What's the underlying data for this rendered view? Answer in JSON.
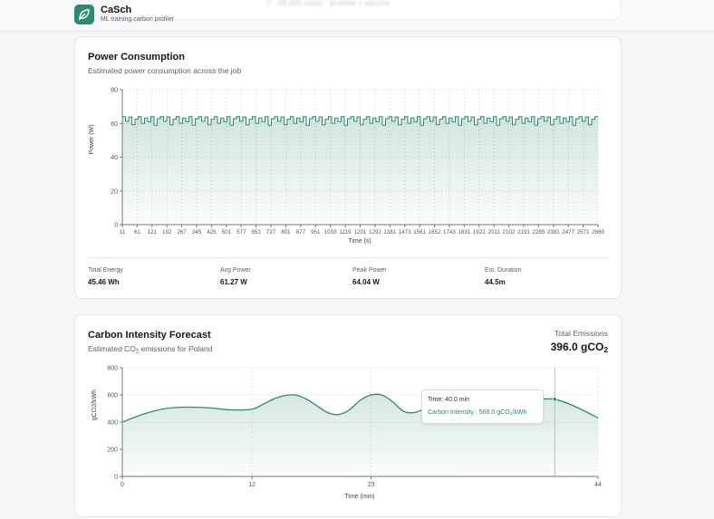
{
  "header": {
    "brand_name": "CaSch",
    "brand_sub": "ML training carbon profiler",
    "blurred_text": "2 · 39,000 steps · profiled 1 epoche"
  },
  "power_card": {
    "title": "Power Consumption",
    "subtitle": "Estimated power consumption across the job",
    "stats": [
      {
        "label": "Total Energy",
        "value": "45.46 Wh"
      },
      {
        "label": "Avg Power",
        "value": "61.27 W"
      },
      {
        "label": "Peak Power",
        "value": "64.04 W"
      },
      {
        "label": "Est. Duration",
        "value": "44.5m"
      }
    ]
  },
  "carbon_card": {
    "title": "Carbon Intensity Forecast",
    "subtitle_prefix": "Estimated CO",
    "subtitle_sub": "2",
    "subtitle_suffix": " emissions for Poland",
    "total_label": "Total Emissions",
    "total_value_prefix": "396.0 gCO",
    "total_value_sub": "2",
    "tooltip": {
      "time": "Time: 40.0 min",
      "ci_prefix": "Carbon Intensity : 568.0 gCO",
      "ci_sub": "2",
      "ci_suffix": "/kWh"
    }
  },
  "chart_data": [
    {
      "type": "area",
      "title": "Power Consumption",
      "xlabel": "Time (s)",
      "ylabel": "Power (W)",
      "ylim": [
        0,
        80
      ],
      "yticks": [
        0,
        20,
        40,
        60,
        80
      ],
      "xticks": [
        "11",
        "61",
        "121",
        "192",
        "267",
        "345",
        "425",
        "501",
        "577",
        "651",
        "727",
        "801",
        "877",
        "951",
        "1033",
        "1119",
        "1201",
        "1292",
        "1381",
        "1473",
        "1561",
        "1652",
        "1743",
        "1831",
        "1922",
        "2011",
        "2102",
        "2191",
        "2285",
        "2381",
        "2477",
        "2571",
        "2669"
      ],
      "series": [
        {
          "values_pattern": [
            64.0,
            61.3,
            63.8,
            59.2,
            62.5,
            64.0,
            60.1,
            63.2,
            61.0,
            64.0,
            58.9,
            62.8
          ],
          "repeat_range": [
            58.9,
            64.04
          ]
        }
      ],
      "grid": true,
      "color": "#2e8a6e"
    },
    {
      "type": "area",
      "title": "Carbon Intensity Forecast",
      "xlabel": "Time (min)",
      "ylabel": "gCO2/kWh",
      "ylim": [
        0,
        800
      ],
      "yticks": [
        0,
        200,
        400,
        600,
        800
      ],
      "xticks": [
        0,
        12,
        23,
        44
      ],
      "x": [
        0,
        2,
        4,
        6,
        8,
        10,
        12,
        13,
        14,
        15,
        16,
        17,
        18,
        19,
        20,
        21,
        22,
        23,
        24,
        25,
        26,
        27,
        28,
        29,
        30,
        32,
        34,
        36,
        38,
        40,
        42,
        44
      ],
      "y": [
        400,
        460,
        500,
        510,
        505,
        490,
        495,
        530,
        570,
        595,
        600,
        570,
        520,
        470,
        455,
        490,
        560,
        600,
        600,
        550,
        480,
        470,
        500,
        540,
        560,
        560,
        555,
        560,
        565,
        568,
        510,
        430
      ],
      "marker": {
        "x": 40,
        "y": 568
      },
      "grid": true,
      "color": "#2e8a6e"
    }
  ]
}
